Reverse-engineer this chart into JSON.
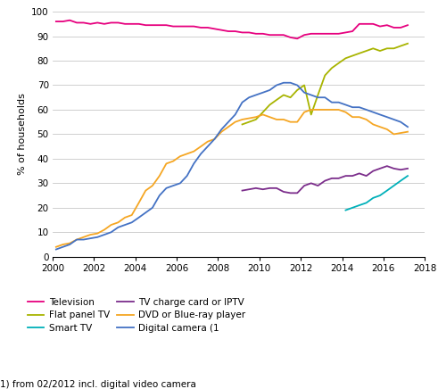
{
  "title": "",
  "ylabel": "% of households",
  "xlabel": "",
  "xlim": [
    2000,
    2018
  ],
  "ylim": [
    0,
    100
  ],
  "yticks": [
    0,
    10,
    20,
    30,
    40,
    50,
    60,
    70,
    80,
    90,
    100
  ],
  "xticks": [
    2000,
    2002,
    2004,
    2006,
    2008,
    2010,
    2012,
    2014,
    2016,
    2018
  ],
  "footnote": "1) from 02/2012 incl. digital video camera",
  "series": {
    "Television": {
      "color": "#e6007e",
      "data": [
        [
          2000.17,
          96
        ],
        [
          2000.5,
          96
        ],
        [
          2000.83,
          96.5
        ],
        [
          2001.17,
          95.5
        ],
        [
          2001.5,
          95.5
        ],
        [
          2001.83,
          95
        ],
        [
          2002.17,
          95.5
        ],
        [
          2002.5,
          95
        ],
        [
          2002.83,
          95.5
        ],
        [
          2003.17,
          95.5
        ],
        [
          2003.5,
          95
        ],
        [
          2003.83,
          95
        ],
        [
          2004.17,
          95
        ],
        [
          2004.5,
          94.5
        ],
        [
          2004.83,
          94.5
        ],
        [
          2005.17,
          94.5
        ],
        [
          2005.5,
          94.5
        ],
        [
          2005.83,
          94
        ],
        [
          2006.17,
          94
        ],
        [
          2006.5,
          94
        ],
        [
          2006.83,
          94
        ],
        [
          2007.17,
          93.5
        ],
        [
          2007.5,
          93.5
        ],
        [
          2007.83,
          93
        ],
        [
          2008.17,
          92.5
        ],
        [
          2008.5,
          92
        ],
        [
          2008.83,
          92
        ],
        [
          2009.17,
          91.5
        ],
        [
          2009.5,
          91.5
        ],
        [
          2009.83,
          91
        ],
        [
          2010.17,
          91
        ],
        [
          2010.5,
          90.5
        ],
        [
          2010.83,
          90.5
        ],
        [
          2011.17,
          90.5
        ],
        [
          2011.5,
          89.5
        ],
        [
          2011.83,
          89
        ],
        [
          2012.17,
          90.5
        ],
        [
          2012.5,
          91
        ],
        [
          2012.83,
          91
        ],
        [
          2013.17,
          91
        ],
        [
          2013.5,
          91
        ],
        [
          2013.83,
          91
        ],
        [
          2014.17,
          91.5
        ],
        [
          2014.5,
          92
        ],
        [
          2014.83,
          95
        ],
        [
          2015.17,
          95
        ],
        [
          2015.5,
          95
        ],
        [
          2015.83,
          94
        ],
        [
          2016.17,
          94.5
        ],
        [
          2016.5,
          93.5
        ],
        [
          2016.83,
          93.5
        ],
        [
          2017.17,
          94.5
        ]
      ]
    },
    "Flat panel TV": {
      "color": "#a8b400",
      "data": [
        [
          2009.17,
          54
        ],
        [
          2009.5,
          55
        ],
        [
          2009.83,
          56
        ],
        [
          2010.17,
          59
        ],
        [
          2010.5,
          62
        ],
        [
          2010.83,
          64
        ],
        [
          2011.17,
          66
        ],
        [
          2011.5,
          65
        ],
        [
          2011.83,
          68
        ],
        [
          2012.17,
          70
        ],
        [
          2012.5,
          58
        ],
        [
          2012.83,
          66
        ],
        [
          2013.17,
          74
        ],
        [
          2013.5,
          77
        ],
        [
          2013.83,
          79
        ],
        [
          2014.17,
          81
        ],
        [
          2014.5,
          82
        ],
        [
          2014.83,
          83
        ],
        [
          2015.17,
          84
        ],
        [
          2015.5,
          85
        ],
        [
          2015.83,
          84
        ],
        [
          2016.17,
          85
        ],
        [
          2016.5,
          85
        ],
        [
          2016.83,
          86
        ],
        [
          2017.17,
          87
        ]
      ]
    },
    "Smart TV": {
      "color": "#00b0b9",
      "data": [
        [
          2014.17,
          19
        ],
        [
          2014.5,
          20
        ],
        [
          2014.83,
          21
        ],
        [
          2015.17,
          22
        ],
        [
          2015.5,
          24
        ],
        [
          2015.83,
          25
        ],
        [
          2016.17,
          27
        ],
        [
          2016.5,
          29
        ],
        [
          2016.83,
          31
        ],
        [
          2017.17,
          33
        ]
      ]
    },
    "TV charge card or IPTV": {
      "color": "#7b2d8b",
      "data": [
        [
          2009.17,
          27
        ],
        [
          2009.5,
          27.5
        ],
        [
          2009.83,
          28
        ],
        [
          2010.17,
          27.5
        ],
        [
          2010.5,
          28
        ],
        [
          2010.83,
          28
        ],
        [
          2011.17,
          26.5
        ],
        [
          2011.5,
          26
        ],
        [
          2011.83,
          26
        ],
        [
          2012.17,
          29
        ],
        [
          2012.5,
          30
        ],
        [
          2012.83,
          29
        ],
        [
          2013.17,
          31
        ],
        [
          2013.5,
          32
        ],
        [
          2013.83,
          32
        ],
        [
          2014.17,
          33
        ],
        [
          2014.5,
          33
        ],
        [
          2014.83,
          34
        ],
        [
          2015.17,
          33
        ],
        [
          2015.5,
          35
        ],
        [
          2015.83,
          36
        ],
        [
          2016.17,
          37
        ],
        [
          2016.5,
          36
        ],
        [
          2016.83,
          35.5
        ],
        [
          2017.17,
          36
        ]
      ]
    },
    "DVD or Blue-ray player": {
      "color": "#f5a623",
      "data": [
        [
          2000.17,
          4
        ],
        [
          2000.5,
          5
        ],
        [
          2000.83,
          5.5
        ],
        [
          2001.17,
          7
        ],
        [
          2001.5,
          8
        ],
        [
          2001.83,
          9
        ],
        [
          2002.17,
          9.5
        ],
        [
          2002.5,
          11
        ],
        [
          2002.83,
          13
        ],
        [
          2003.17,
          14
        ],
        [
          2003.5,
          16
        ],
        [
          2003.83,
          17
        ],
        [
          2004.17,
          22
        ],
        [
          2004.5,
          27
        ],
        [
          2004.83,
          29
        ],
        [
          2005.17,
          33
        ],
        [
          2005.5,
          38
        ],
        [
          2005.83,
          39
        ],
        [
          2006.17,
          41
        ],
        [
          2006.5,
          42
        ],
        [
          2006.83,
          43
        ],
        [
          2007.17,
          45
        ],
        [
          2007.5,
          47
        ],
        [
          2007.83,
          48
        ],
        [
          2008.17,
          51
        ],
        [
          2008.5,
          53
        ],
        [
          2008.83,
          55
        ],
        [
          2009.17,
          56
        ],
        [
          2009.5,
          56.5
        ],
        [
          2009.83,
          57
        ],
        [
          2010.17,
          58
        ],
        [
          2010.5,
          57
        ],
        [
          2010.83,
          56
        ],
        [
          2011.17,
          56
        ],
        [
          2011.5,
          55
        ],
        [
          2011.83,
          55
        ],
        [
          2012.17,
          59
        ],
        [
          2012.5,
          60
        ],
        [
          2012.83,
          60
        ],
        [
          2013.17,
          60
        ],
        [
          2013.5,
          60
        ],
        [
          2013.83,
          60
        ],
        [
          2014.17,
          59
        ],
        [
          2014.5,
          57
        ],
        [
          2014.83,
          57
        ],
        [
          2015.17,
          56
        ],
        [
          2015.5,
          54
        ],
        [
          2015.83,
          53
        ],
        [
          2016.17,
          52
        ],
        [
          2016.5,
          50
        ],
        [
          2016.83,
          50.5
        ],
        [
          2017.17,
          51
        ]
      ]
    },
    "Digital camera (1": {
      "color": "#4472c4",
      "data": [
        [
          2000.17,
          3
        ],
        [
          2000.5,
          4
        ],
        [
          2000.83,
          5
        ],
        [
          2001.17,
          7
        ],
        [
          2001.5,
          7
        ],
        [
          2001.83,
          7.5
        ],
        [
          2002.17,
          8
        ],
        [
          2002.5,
          9
        ],
        [
          2002.83,
          10
        ],
        [
          2003.17,
          12
        ],
        [
          2003.5,
          13
        ],
        [
          2003.83,
          14
        ],
        [
          2004.17,
          16
        ],
        [
          2004.5,
          18
        ],
        [
          2004.83,
          20
        ],
        [
          2005.17,
          25
        ],
        [
          2005.5,
          28
        ],
        [
          2005.83,
          29
        ],
        [
          2006.17,
          30
        ],
        [
          2006.5,
          33
        ],
        [
          2006.83,
          38
        ],
        [
          2007.17,
          42
        ],
        [
          2007.5,
          45
        ],
        [
          2007.83,
          48
        ],
        [
          2008.17,
          52
        ],
        [
          2008.5,
          55
        ],
        [
          2008.83,
          58
        ],
        [
          2009.17,
          63
        ],
        [
          2009.5,
          65
        ],
        [
          2009.83,
          66
        ],
        [
          2010.17,
          67
        ],
        [
          2010.5,
          68
        ],
        [
          2010.83,
          70
        ],
        [
          2011.17,
          71
        ],
        [
          2011.5,
          71
        ],
        [
          2011.83,
          70
        ],
        [
          2012.17,
          67
        ],
        [
          2012.5,
          66
        ],
        [
          2012.83,
          65
        ],
        [
          2013.17,
          65
        ],
        [
          2013.5,
          63
        ],
        [
          2013.83,
          63
        ],
        [
          2014.17,
          62
        ],
        [
          2014.5,
          61
        ],
        [
          2014.83,
          61
        ],
        [
          2015.17,
          60
        ],
        [
          2015.5,
          59
        ],
        [
          2015.83,
          58
        ],
        [
          2016.17,
          57
        ],
        [
          2016.5,
          56
        ],
        [
          2016.83,
          55
        ],
        [
          2017.17,
          53
        ]
      ]
    }
  },
  "legend_order": [
    "Television",
    "Flat panel TV",
    "Smart TV",
    "TV charge card or IPTV",
    "DVD or Blue-ray player",
    "Digital camera (1"
  ],
  "legend_ncol": 2,
  "figsize": [
    4.91,
    4.36
  ],
  "dpi": 100
}
